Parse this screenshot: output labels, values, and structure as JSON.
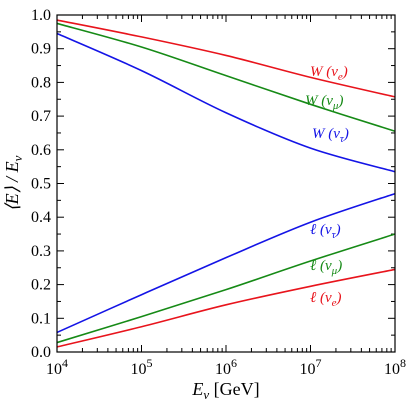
{
  "chart_data": {
    "type": "line",
    "title": "",
    "xlabel": "E_ν [GeV]",
    "ylabel": "⟨E⟩ / E_ν",
    "xscale": "log",
    "xlim": [
      10000,
      100000000
    ],
    "ylim": [
      0.0,
      1.0
    ],
    "grid": false,
    "legend": "none (inline curve labels)",
    "x_tick_labels": [
      "10^4",
      "10^5",
      "10^6",
      "10^7",
      "10^8"
    ],
    "y_tick_labels": [
      "0.0",
      "0.1",
      "0.2",
      "0.3",
      "0.4",
      "0.5",
      "0.6",
      "0.7",
      "0.8",
      "0.9",
      "1.0"
    ],
    "x": [
      10000,
      100000,
      1000000,
      10000000,
      100000000
    ],
    "series": [
      {
        "name": "W (ν_e)",
        "color": "#e8141c",
        "values": [
          0.985,
          0.935,
          0.88,
          0.815,
          0.757
        ]
      },
      {
        "name": "W (ν_μ)",
        "color": "#168a16",
        "values": [
          0.975,
          0.905,
          0.82,
          0.735,
          0.655
        ]
      },
      {
        "name": "W (ν_τ)",
        "color": "#1414e6",
        "values": [
          0.945,
          0.835,
          0.71,
          0.605,
          0.535
        ]
      },
      {
        "name": "ℓ (ν_τ)",
        "color": "#1414e6",
        "values": [
          0.058,
          0.17,
          0.28,
          0.385,
          0.47
        ]
      },
      {
        "name": "ℓ (ν_μ)",
        "color": "#168a16",
        "values": [
          0.028,
          0.105,
          0.185,
          0.27,
          0.35
        ]
      },
      {
        "name": "ℓ (ν_e)",
        "color": "#e8141c",
        "values": [
          0.015,
          0.075,
          0.14,
          0.195,
          0.245
        ]
      }
    ]
  }
}
